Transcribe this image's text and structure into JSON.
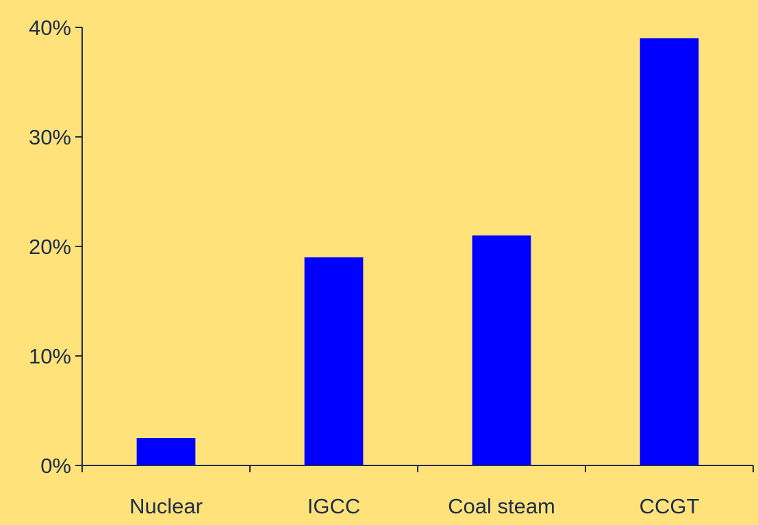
{
  "chart_data": {
    "type": "bar",
    "title": "",
    "xlabel": "",
    "ylabel": "",
    "categories": [
      "Nuclear",
      "IGCC",
      "Coal steam",
      "CCGT"
    ],
    "series": [
      {
        "values": [
          2.5,
          19,
          21,
          39
        ]
      }
    ],
    "ylim": [
      0,
      40
    ],
    "yticks": [
      0,
      10,
      20,
      30,
      40
    ],
    "ytick_labels": [
      "0%",
      "10%",
      "20%",
      "30%",
      "40%"
    ],
    "grid": false,
    "legend": "none",
    "colors": {
      "background": "#FFE27A",
      "bar": "#0000FF",
      "axis": "#1F2D4A",
      "text": "#1F2D4A"
    }
  }
}
